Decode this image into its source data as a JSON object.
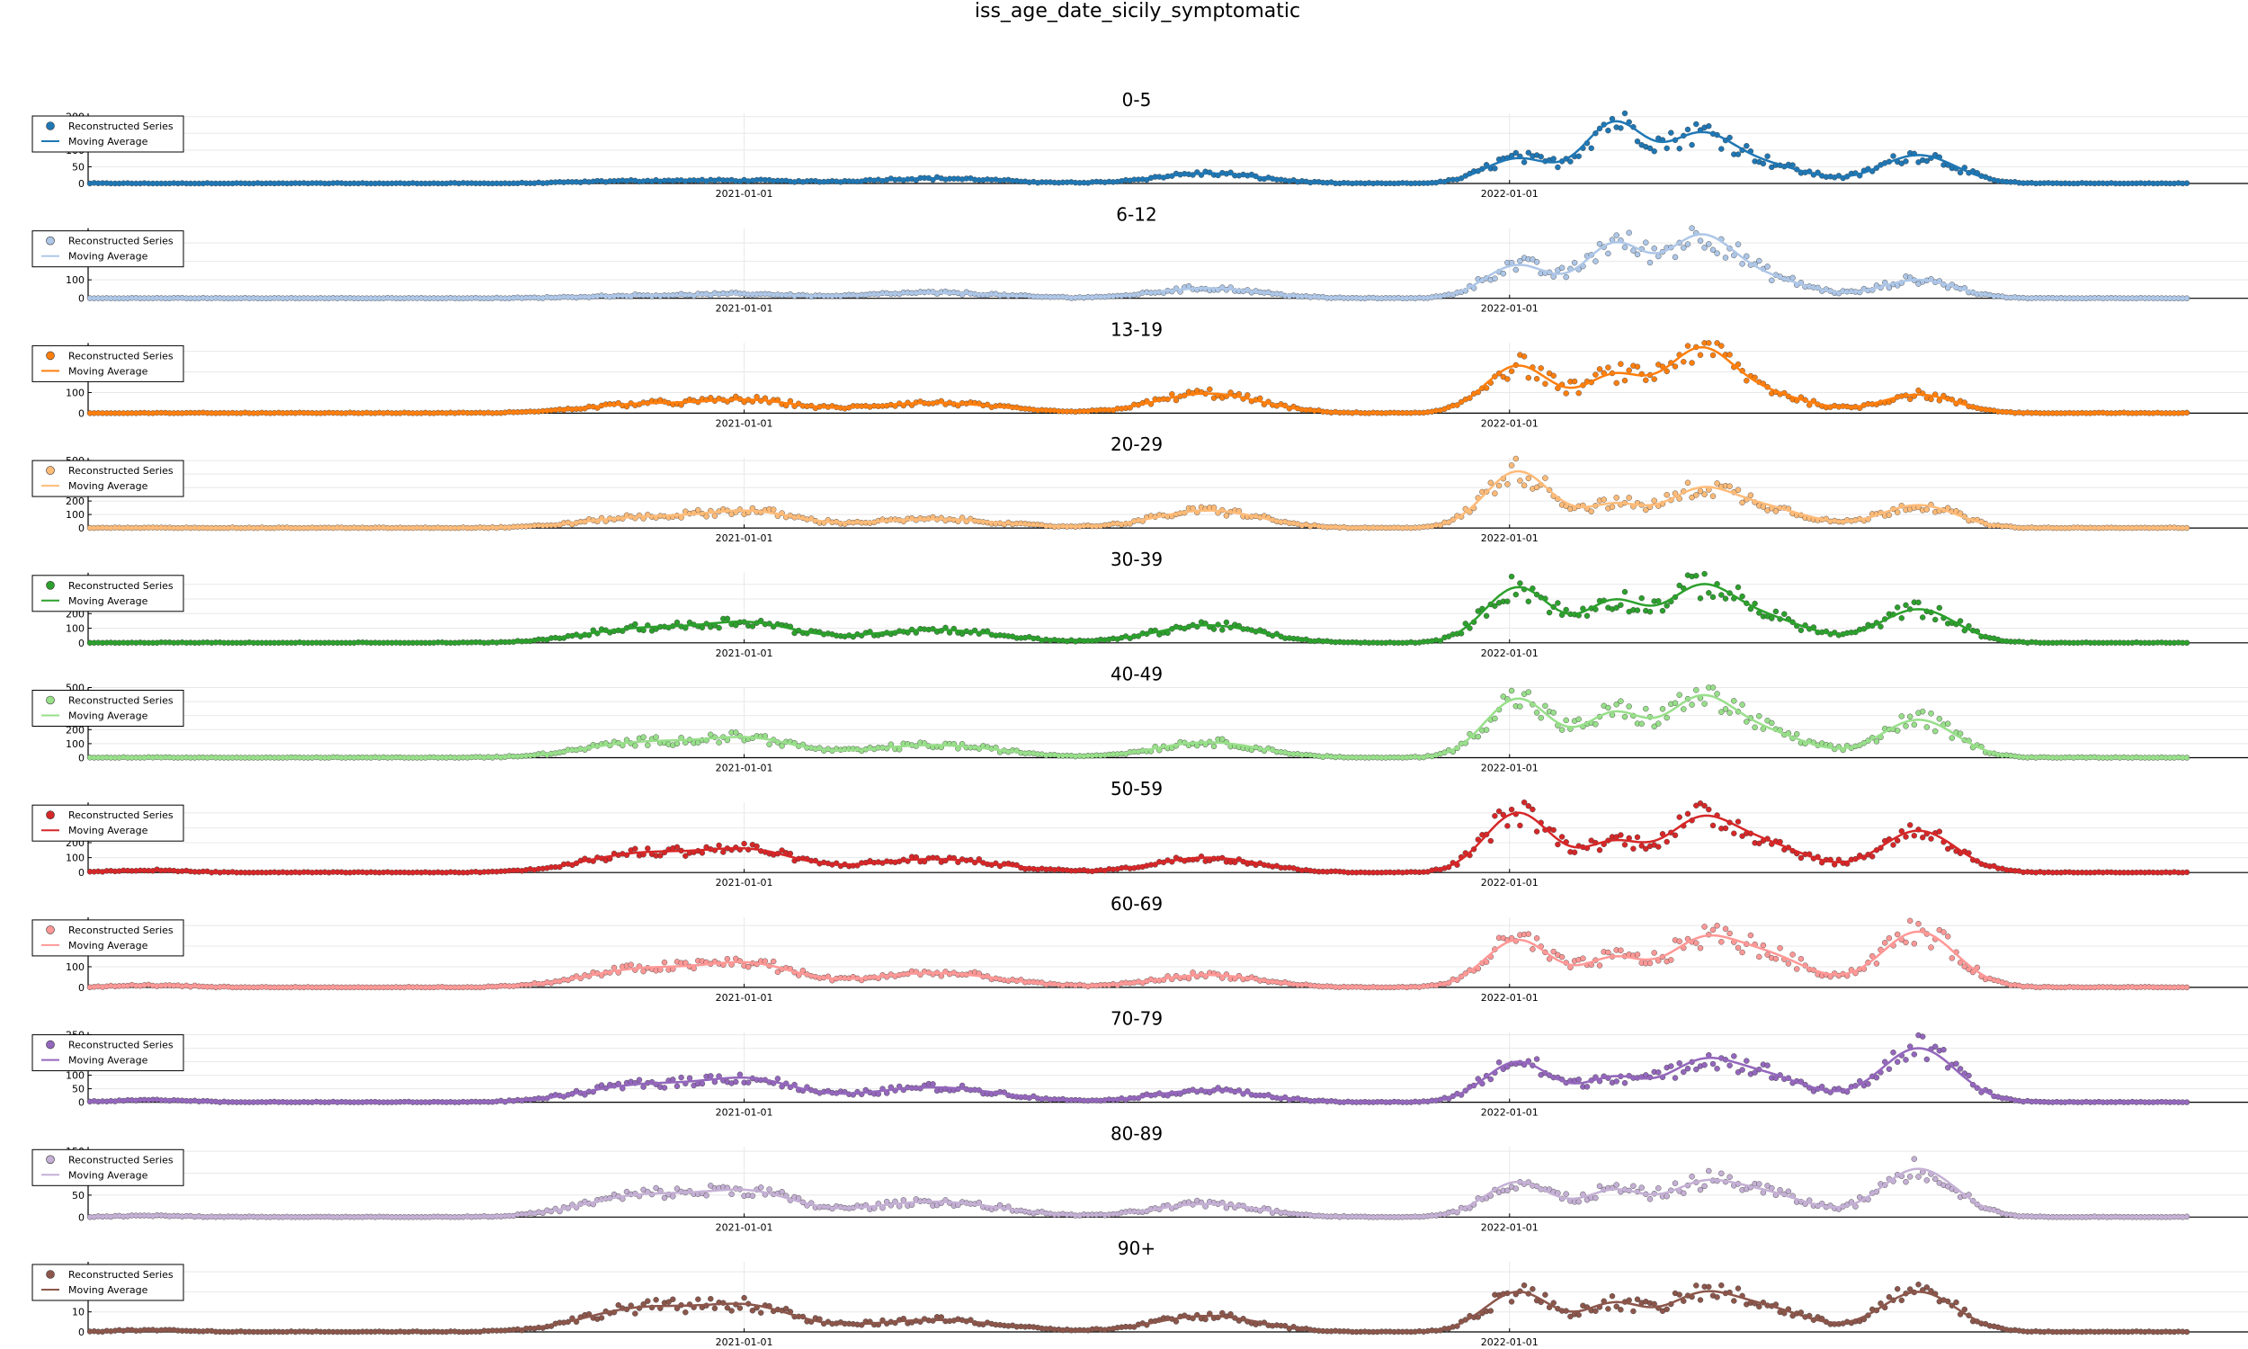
{
  "figure_title": "iss_age_date_sicily_symptomatic",
  "legend_labels": {
    "scatter": "Reconstructed Series",
    "line": "Moving Average"
  },
  "date_ticks": [
    "2021-01-01",
    "2022-01-01"
  ],
  "chart_data": {
    "type": "scatter",
    "x_range": [
      "2020-02-24",
      "2022-11-20"
    ],
    "legend_position": "top-left",
    "grid": true,
    "peaks": [
      {
        "date": "2020-03-25",
        "rel": 0.03
      },
      {
        "date": "2020-11-15",
        "rel": 0.28
      },
      {
        "date": "2021-01-05",
        "rel": 0.3
      },
      {
        "date": "2021-04-01",
        "rel": 0.22
      },
      {
        "date": "2021-08-10",
        "rel": 0.3
      },
      {
        "date": "2022-01-05",
        "rel": 1.0
      },
      {
        "date": "2022-02-20",
        "rel": 0.62
      },
      {
        "date": "2022-04-01",
        "rel": 0.72
      },
      {
        "date": "2022-05-01",
        "rel": 0.42
      },
      {
        "date": "2022-07-15",
        "rel": 0.62
      }
    ],
    "panels": [
      {
        "title": "0-5",
        "color": "#1f77b4",
        "yticks": [
          0,
          50,
          100,
          150,
          200
        ],
        "ylim": [
          0,
          210
        ],
        "peak_values": [
          0,
          8,
          7,
          15,
          30,
          75,
          180,
          130,
          55,
          85
        ]
      },
      {
        "title": "6-12",
        "color": "#aec7e8",
        "yticks": [
          0,
          100,
          200,
          300
        ],
        "ylim": [
          0,
          380
        ],
        "peak_values": [
          0,
          15,
          20,
          30,
          55,
          180,
          290,
          300,
          110,
          100
        ]
      },
      {
        "title": "13-19",
        "color": "#ff7f0e",
        "yticks": [
          0,
          100,
          200,
          300
        ],
        "ylim": [
          0,
          340
        ],
        "peak_values": [
          0,
          45,
          55,
          50,
          95,
          230,
          180,
          280,
          95,
          90
        ]
      },
      {
        "title": "20-29",
        "color": "#ffbb78",
        "yticks": [
          0,
          100,
          200,
          300,
          400,
          500
        ],
        "ylim": [
          0,
          520
        ],
        "peak_values": [
          0,
          80,
          110,
          65,
          130,
          420,
          170,
          240,
          150,
          170
        ]
      },
      {
        "title": "30-39",
        "color": "#2ca02c",
        "yticks": [
          0,
          100,
          200,
          300,
          400
        ],
        "ylim": [
          0,
          480
        ],
        "peak_values": [
          0,
          100,
          120,
          90,
          120,
          380,
          280,
          330,
          170,
          230
        ]
      },
      {
        "title": "40-49",
        "color": "#98df8a",
        "yticks": [
          0,
          100,
          200,
          300,
          400,
          500
        ],
        "ylim": [
          0,
          500
        ],
        "peak_values": [
          0,
          110,
          120,
          90,
          110,
          420,
          310,
          370,
          180,
          270
        ]
      },
      {
        "title": "50-59",
        "color": "#d62728",
        "yticks": [
          0,
          100,
          200,
          300,
          400
        ],
        "ylim": [
          0,
          470
        ],
        "peak_values": [
          15,
          130,
          130,
          90,
          100,
          400,
          200,
          300,
          190,
          280
        ]
      },
      {
        "title": "60-69",
        "color": "#ff9896",
        "yticks": [
          0,
          100,
          200,
          300
        ],
        "ylim": [
          0,
          340
        ],
        "peak_values": [
          10,
          90,
          100,
          70,
          60,
          230,
          140,
          180,
          160,
          270
        ]
      },
      {
        "title": "70-79",
        "color": "#9467bd",
        "yticks": [
          0,
          50,
          100,
          150,
          200,
          250
        ],
        "ylim": [
          0,
          260
        ],
        "peak_values": [
          8,
          65,
          75,
          55,
          45,
          150,
          90,
          120,
          100,
          200
        ]
      },
      {
        "title": "80-89",
        "color": "#c5b0d5",
        "yticks": [
          0,
          50,
          100,
          150
        ],
        "ylim": [
          0,
          160
        ],
        "peak_values": [
          3,
          50,
          50,
          35,
          30,
          80,
          60,
          60,
          55,
          110
        ]
      },
      {
        "title": "90+",
        "color": "#8c564b",
        "yticks": [
          0,
          10,
          20,
          30
        ],
        "ylim": [
          0,
          35
        ],
        "peak_values": [
          1,
          12,
          11,
          6,
          8,
          20,
          14,
          15,
          12,
          20
        ]
      }
    ]
  }
}
